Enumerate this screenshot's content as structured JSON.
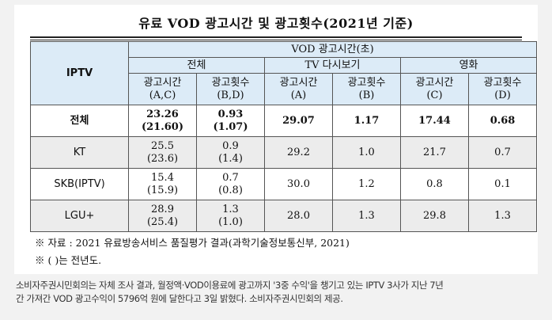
{
  "title": "유료 VOD 광고시간 및 광고횟수(2021년 기준)",
  "table": {
    "corner": "IPTV",
    "group_header": "VOD 광고시간(초)",
    "sub_groups": [
      "전체",
      "TV 다시보기",
      "영화"
    ],
    "col_headers": [
      {
        "line1": "광고시간",
        "line2": "(A,C)"
      },
      {
        "line1": "광고횟수",
        "line2": "(B,D)"
      },
      {
        "line1": "광고시간",
        "line2": "(A)"
      },
      {
        "line1": "광고횟수",
        "line2": "(B)"
      },
      {
        "line1": "광고시간",
        "line2": "(C)"
      },
      {
        "line1": "광고횟수",
        "line2": "(D)"
      }
    ],
    "rows": [
      {
        "label": "전체",
        "total_time": "23.26",
        "total_time_prev": "(21.60)",
        "total_count": "0.93",
        "total_count_prev": "(1.07)",
        "tv_time": "29.07",
        "tv_count": "1.17",
        "movie_time": "17.44",
        "movie_count": "0.68"
      },
      {
        "label": "KT",
        "total_time": "25.5",
        "total_time_prev": "(23.6)",
        "total_count": "0.9",
        "total_count_prev": "(1.4)",
        "tv_time": "29.2",
        "tv_count": "1.0",
        "movie_time": "21.7",
        "movie_count": "0.7"
      },
      {
        "label": "SKB(IPTV)",
        "total_time": "15.4",
        "total_time_prev": "(15.9)",
        "total_count": "0.7",
        "total_count_prev": "(0.8)",
        "tv_time": "30.0",
        "tv_count": "1.2",
        "movie_time": "0.8",
        "movie_count": "0.1"
      },
      {
        "label": "LGU+",
        "total_time": "28.9",
        "total_time_prev": "(25.4)",
        "total_count": "1.3",
        "total_count_prev": "(1.0)",
        "tv_time": "28.0",
        "tv_count": "1.3",
        "movie_time": "29.8",
        "movie_count": "1.3"
      }
    ]
  },
  "notes": {
    "source": "※ 자료 : 2021 유료방송서비스 품질평가 결과(과학기술정보통신부, 2021)",
    "paren": "※ ( )는 전년도."
  },
  "caption": {
    "line1": "소비자주권시민회의는 자체 조사 결과, 월정액·VOD이용료에 광고까지 '3중 수익'을 챙기고 있는 IPTV 3사가 지난 7년",
    "line2": "간 가져간 VOD 광고수익이 5796억 원에 달한다고 3일 밝혔다. 소비자주권시민회의 제공."
  }
}
